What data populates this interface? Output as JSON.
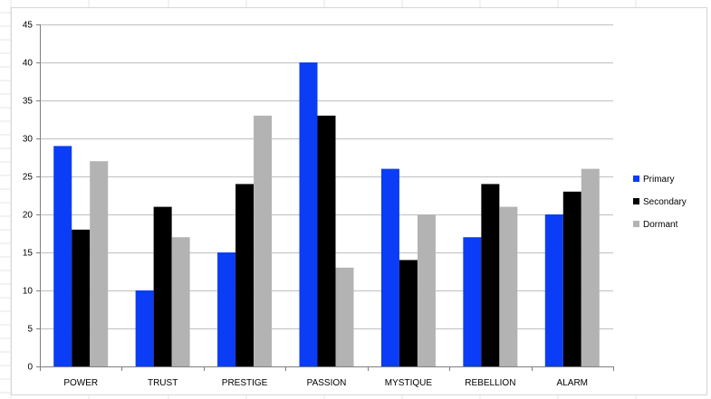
{
  "chart_data": {
    "type": "bar",
    "title": "",
    "xlabel": "",
    "ylabel": "",
    "categories": [
      "POWER",
      "TRUST",
      "PRESTIGE",
      "PASSION",
      "MYSTIQUE",
      "REBELLION",
      "ALARM"
    ],
    "series": [
      {
        "name": "Primary",
        "color": "#0a3df5",
        "values": [
          29,
          10,
          15,
          40,
          26,
          17,
          20
        ]
      },
      {
        "name": "Secondary",
        "color": "#000000",
        "values": [
          18,
          21,
          24,
          33,
          14,
          24,
          23
        ]
      },
      {
        "name": "Dormant",
        "color": "#b3b3b3",
        "values": [
          27,
          17,
          33,
          13,
          20,
          21,
          26
        ]
      }
    ],
    "ylim": [
      0,
      45
    ],
    "yticks": [
      0,
      5,
      10,
      15,
      20,
      25,
      30,
      35,
      40,
      45
    ],
    "grid": true,
    "legend_position": "right"
  }
}
